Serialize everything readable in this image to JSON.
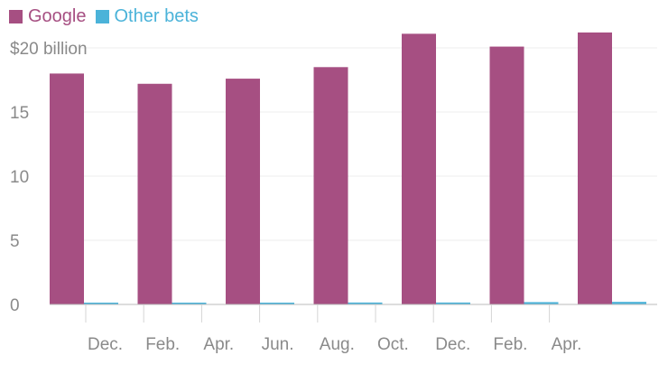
{
  "chart_data": {
    "type": "bar",
    "x_tick_labels": [
      "Dec.",
      "Feb.",
      "Apr.",
      "Jun.",
      "Aug.",
      "Oct.",
      "Dec.",
      "Feb.",
      "Apr."
    ],
    "y_ticks": [
      0,
      5,
      10,
      15,
      20
    ],
    "y_tick_labels": [
      "0",
      "5",
      "10",
      "15",
      "$20 billion"
    ],
    "ylim": [
      0,
      20
    ],
    "grid": true,
    "legend_position": "top-left",
    "series": [
      {
        "name": "Google",
        "color": "#a64f82",
        "values": [
          18.0,
          17.2,
          17.6,
          18.5,
          21.1,
          20.1,
          21.2
        ]
      },
      {
        "name": "Other bets",
        "color": "#4bb3d9",
        "values": [
          0.1,
          0.08,
          0.08,
          0.15,
          0.15,
          0.18,
          0.2
        ]
      }
    ]
  }
}
